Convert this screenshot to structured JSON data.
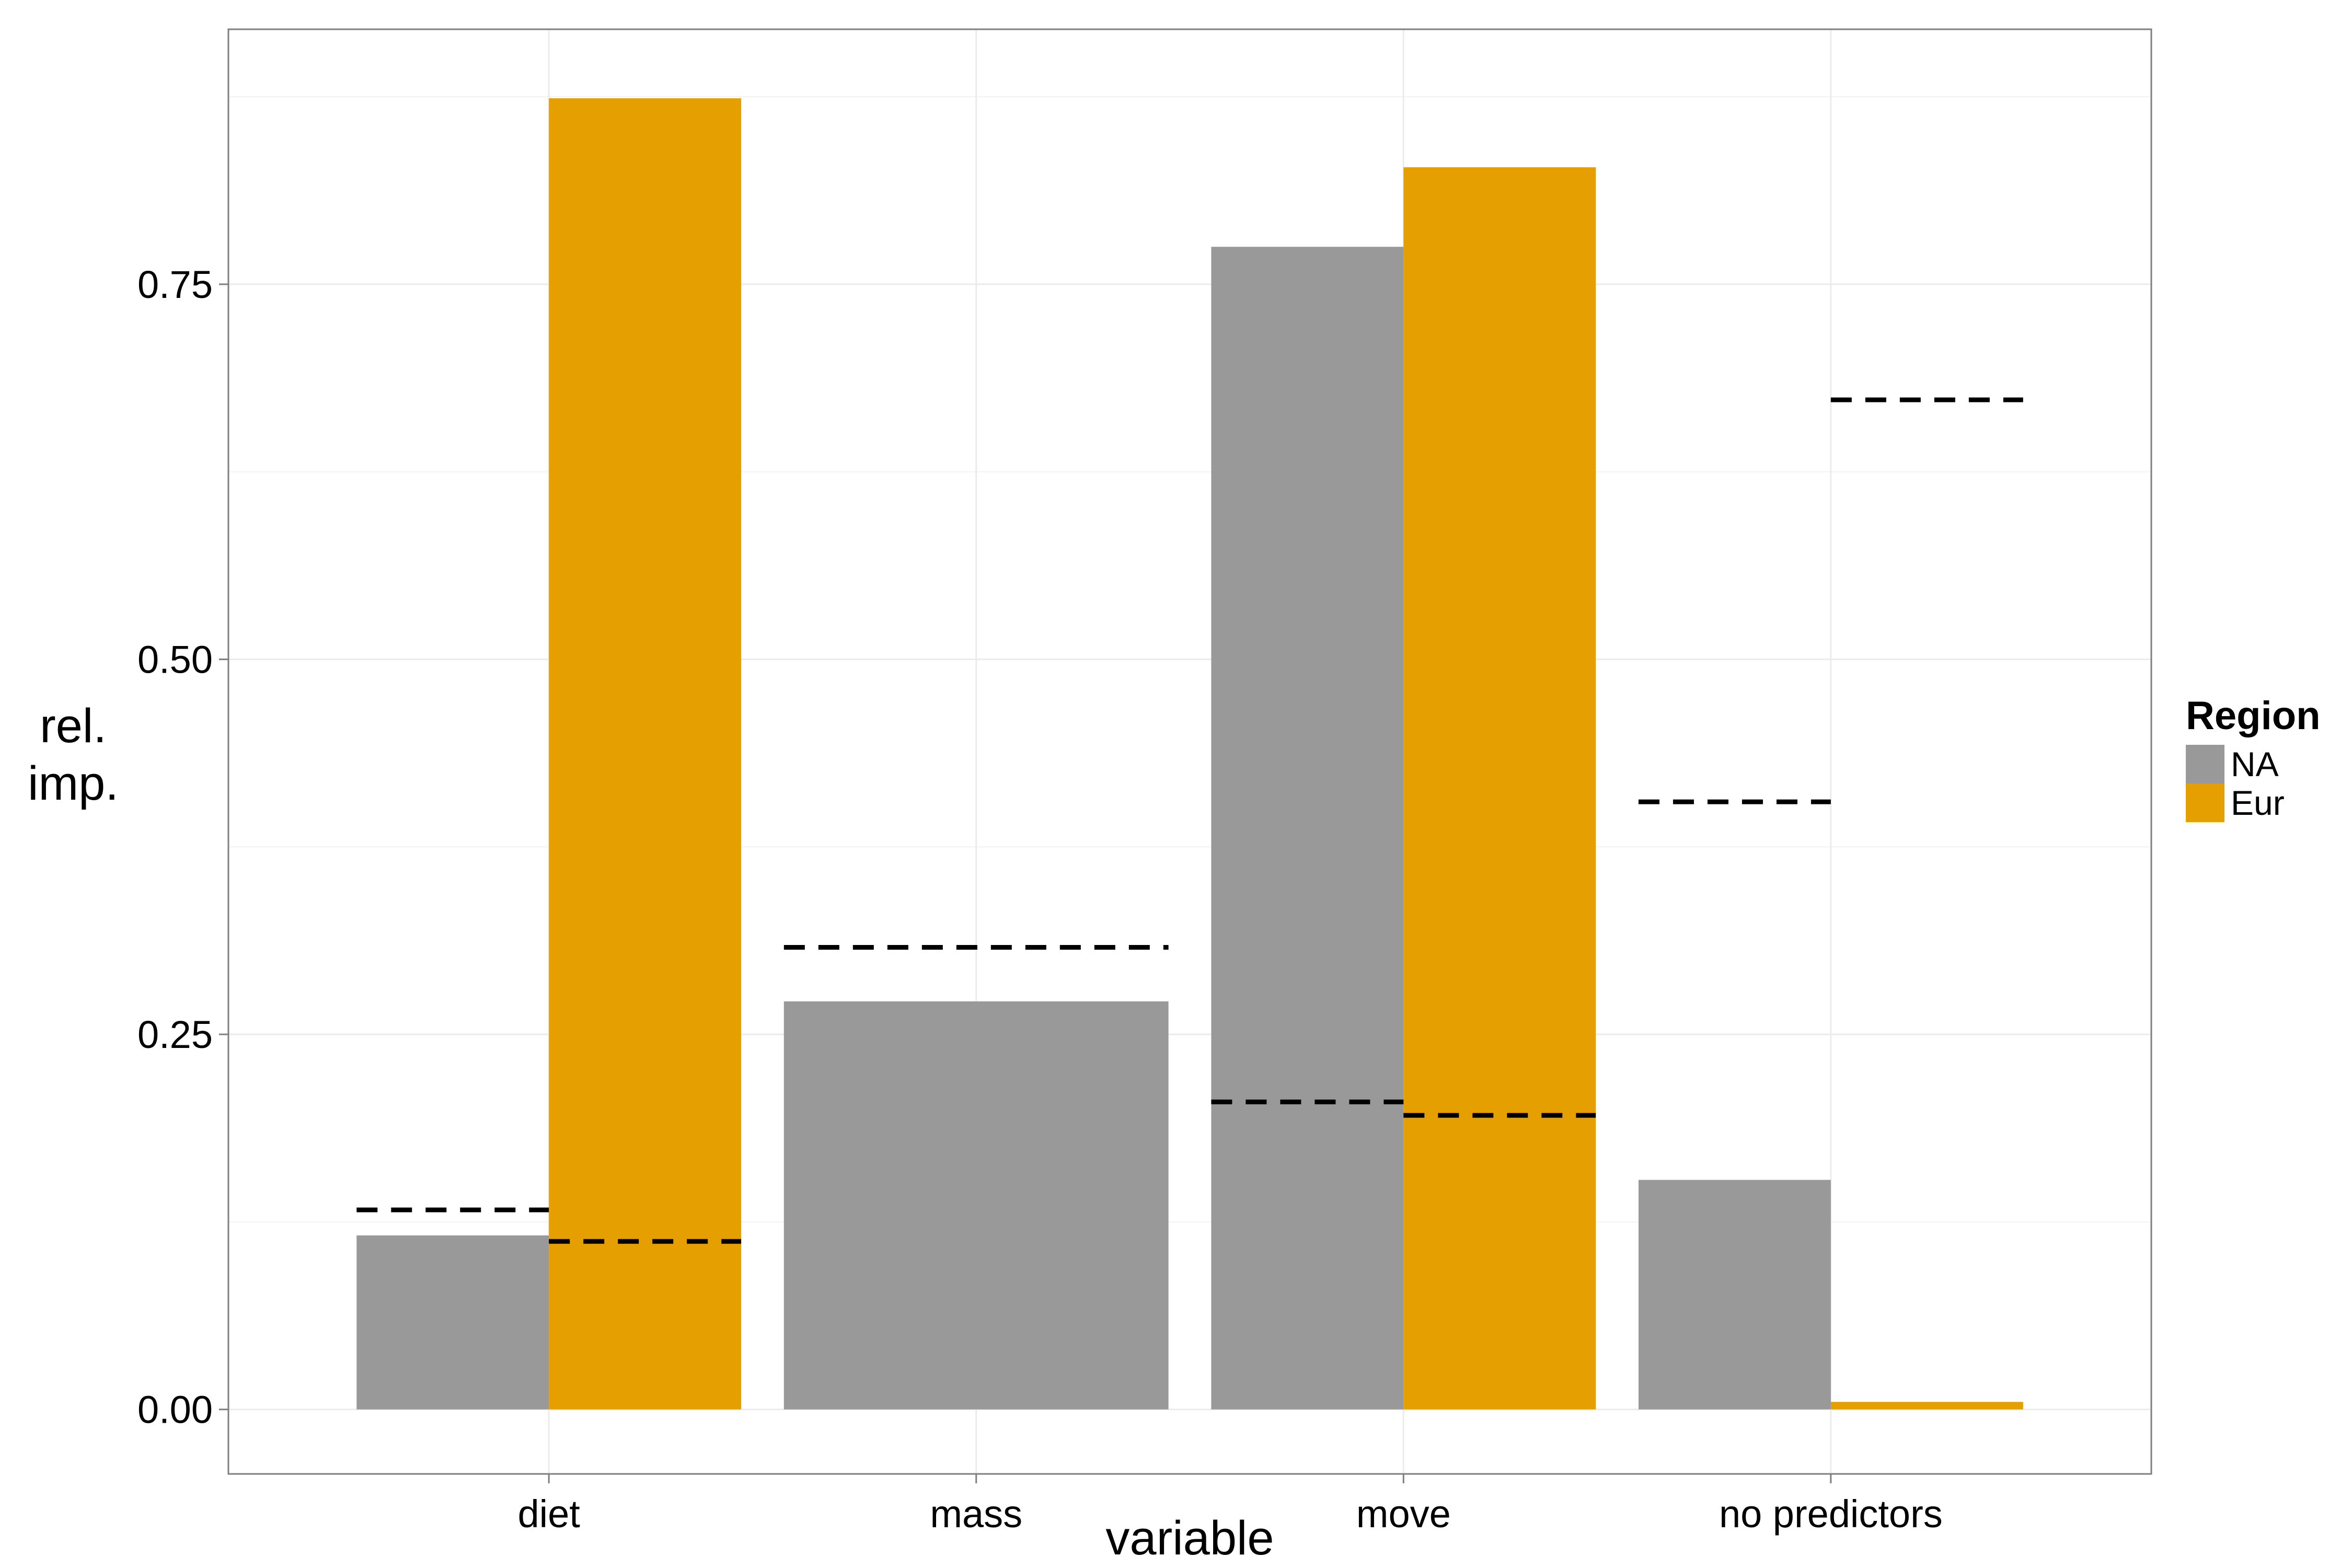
{
  "chart_data": {
    "type": "bar",
    "xlabel": "variable",
    "ylabel": "rel.\nimp.",
    "ylim": [
      -0.043,
      0.92
    ],
    "y_ticks": [
      0.0,
      0.25,
      0.5,
      0.75
    ],
    "y_tick_labels": [
      "0.00",
      "0.25",
      "0.50",
      "0.75"
    ],
    "categories": [
      "diet",
      "mass",
      "move",
      "no predictors"
    ],
    "legend": {
      "title": "Region",
      "placement": "right"
    },
    "grid": true,
    "series": [
      {
        "name": "NA",
        "color": "#999999",
        "values": [
          0.116,
          0.272,
          0.775,
          0.153
        ],
        "reference": [
          0.133,
          0.308,
          0.205,
          0.405
        ]
      },
      {
        "name": "Eur",
        "color": "#E69F00",
        "values": [
          0.874,
          null,
          0.828,
          0.005
        ],
        "reference": [
          0.112,
          null,
          0.196,
          0.673
        ]
      }
    ],
    "reference_style": "dashed line"
  }
}
